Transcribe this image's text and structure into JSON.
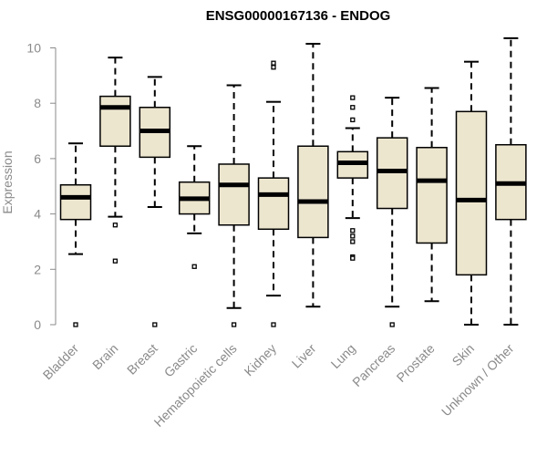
{
  "chart_data": {
    "type": "box",
    "title": "ENSG00000167136 - ENDOG",
    "ylabel": "Expression",
    "xlabel": "",
    "ylim": [
      0,
      10.3
    ],
    "yticks": [
      0,
      2,
      4,
      6,
      8,
      10
    ],
    "grid": false,
    "box_fill": "#ede6cf",
    "box_stroke": "#000000",
    "axis_color": "#8a8a8a",
    "categories": [
      "Bladder",
      "Brain",
      "Breast",
      "Gastric",
      "Hematopoietic cells",
      "Kidney",
      "Liver",
      "Lung",
      "Pancreas",
      "Prostate",
      "Skin",
      "Unknown / Other"
    ],
    "boxes": [
      {
        "category": "Bladder",
        "whisker_low": 2.55,
        "q1": 3.8,
        "median": 4.6,
        "q3": 5.05,
        "whisker_high": 6.55,
        "outliers": [
          0.0
        ]
      },
      {
        "category": "Brain",
        "whisker_low": 3.9,
        "q1": 6.45,
        "median": 7.85,
        "q3": 8.25,
        "whisker_high": 9.65,
        "outliers": [
          3.6,
          2.3
        ]
      },
      {
        "category": "Breast",
        "whisker_low": 4.25,
        "q1": 6.05,
        "median": 7.0,
        "q3": 7.85,
        "whisker_high": 8.95,
        "outliers": [
          0.0
        ]
      },
      {
        "category": "Gastric",
        "whisker_low": 3.3,
        "q1": 4.0,
        "median": 4.55,
        "q3": 5.15,
        "whisker_high": 6.45,
        "outliers": [
          2.1
        ]
      },
      {
        "category": "Hematopoietic cells",
        "whisker_low": 0.6,
        "q1": 3.6,
        "median": 5.05,
        "q3": 5.8,
        "whisker_high": 8.65,
        "outliers": [
          0.0
        ]
      },
      {
        "category": "Kidney",
        "whisker_low": 1.05,
        "q1": 3.45,
        "median": 4.7,
        "q3": 5.3,
        "whisker_high": 8.05,
        "outliers": [
          9.45,
          9.3,
          0.0
        ]
      },
      {
        "category": "Liver",
        "whisker_low": 0.65,
        "q1": 3.15,
        "median": 4.45,
        "q3": 6.45,
        "whisker_high": 10.15,
        "outliers": []
      },
      {
        "category": "Lung",
        "whisker_low": 3.85,
        "q1": 5.3,
        "median": 5.85,
        "q3": 6.25,
        "whisker_high": 7.1,
        "outliers": [
          8.2,
          7.85,
          7.4,
          3.4,
          3.2,
          3.0,
          2.45,
          2.4
        ]
      },
      {
        "category": "Pancreas",
        "whisker_low": 0.65,
        "q1": 4.2,
        "median": 5.55,
        "q3": 6.75,
        "whisker_high": 8.2,
        "outliers": [
          0.0
        ]
      },
      {
        "category": "Prostate",
        "whisker_low": 0.85,
        "q1": 2.95,
        "median": 5.2,
        "q3": 6.4,
        "whisker_high": 8.55,
        "outliers": []
      },
      {
        "category": "Skin",
        "whisker_low": 0.0,
        "q1": 1.8,
        "median": 4.5,
        "q3": 7.7,
        "whisker_high": 9.5,
        "outliers": []
      },
      {
        "category": "Unknown / Other",
        "whisker_low": 0.0,
        "q1": 3.8,
        "median": 5.1,
        "q3": 6.5,
        "whisker_high": 10.35,
        "outliers": []
      }
    ]
  }
}
